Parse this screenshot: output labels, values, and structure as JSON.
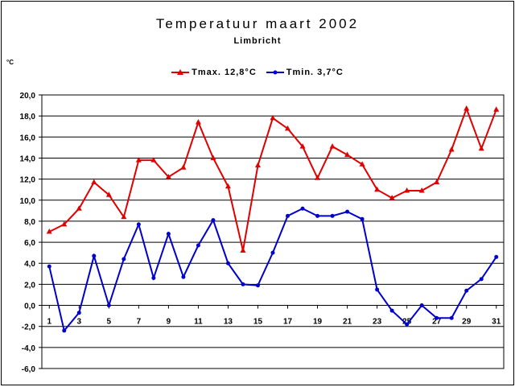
{
  "chart_data": {
    "type": "line",
    "title": "Temperatuur maart 2002",
    "subtitle": "Limbricht",
    "ylabel": "°C",
    "ylim": [
      -6,
      20
    ],
    "yticks": [
      20,
      18,
      16,
      14,
      12,
      10,
      8,
      6,
      4,
      2,
      0,
      -2,
      -4,
      -6
    ],
    "ytick_labels": [
      "20,0",
      "18,0",
      "16,0",
      "14,0",
      "12,0",
      "10,0",
      "8,0",
      "6,0",
      "4,0",
      "2,0",
      "0,0",
      "-2,0",
      "-4,0",
      "-6,0"
    ],
    "x": [
      1,
      2,
      3,
      4,
      5,
      6,
      7,
      8,
      9,
      10,
      11,
      12,
      13,
      14,
      15,
      16,
      17,
      18,
      19,
      20,
      21,
      22,
      23,
      24,
      25,
      26,
      27,
      28,
      29,
      30,
      31
    ],
    "xtick_labels": [
      "1",
      "3",
      "5",
      "7",
      "9",
      "11",
      "13",
      "15",
      "17",
      "19",
      "21",
      "23",
      "25",
      "27",
      "29",
      "31"
    ],
    "xtick_values": [
      1,
      3,
      5,
      7,
      9,
      11,
      13,
      15,
      17,
      19,
      21,
      23,
      25,
      27,
      29,
      31
    ],
    "grid": true,
    "legend": "top",
    "series": [
      {
        "name": "Tmax. 12,8°C",
        "color": "#e00000",
        "marker": "triangle",
        "values": [
          7.0,
          7.7,
          9.2,
          11.7,
          10.5,
          8.4,
          13.8,
          13.8,
          12.2,
          13.1,
          17.4,
          14.0,
          11.3,
          5.2,
          13.3,
          17.8,
          16.8,
          15.1,
          12.1,
          15.1,
          14.3,
          13.4,
          11.0,
          10.2,
          10.9,
          10.9,
          11.7,
          14.8,
          18.7,
          14.9,
          18.6
        ]
      },
      {
        "name": "Tmin. 3,7°C",
        "color": "#0000cc",
        "marker": "circle",
        "values": [
          3.7,
          -2.4,
          -0.7,
          4.7,
          0.0,
          4.4,
          7.7,
          2.6,
          6.8,
          2.7,
          5.7,
          8.1,
          4.0,
          2.0,
          1.9,
          5.0,
          8.5,
          9.2,
          8.5,
          8.5,
          8.9,
          8.2,
          1.5,
          -0.5,
          -1.8,
          0.0,
          -1.2,
          -1.2,
          1.4,
          2.5,
          4.6
        ]
      }
    ]
  }
}
